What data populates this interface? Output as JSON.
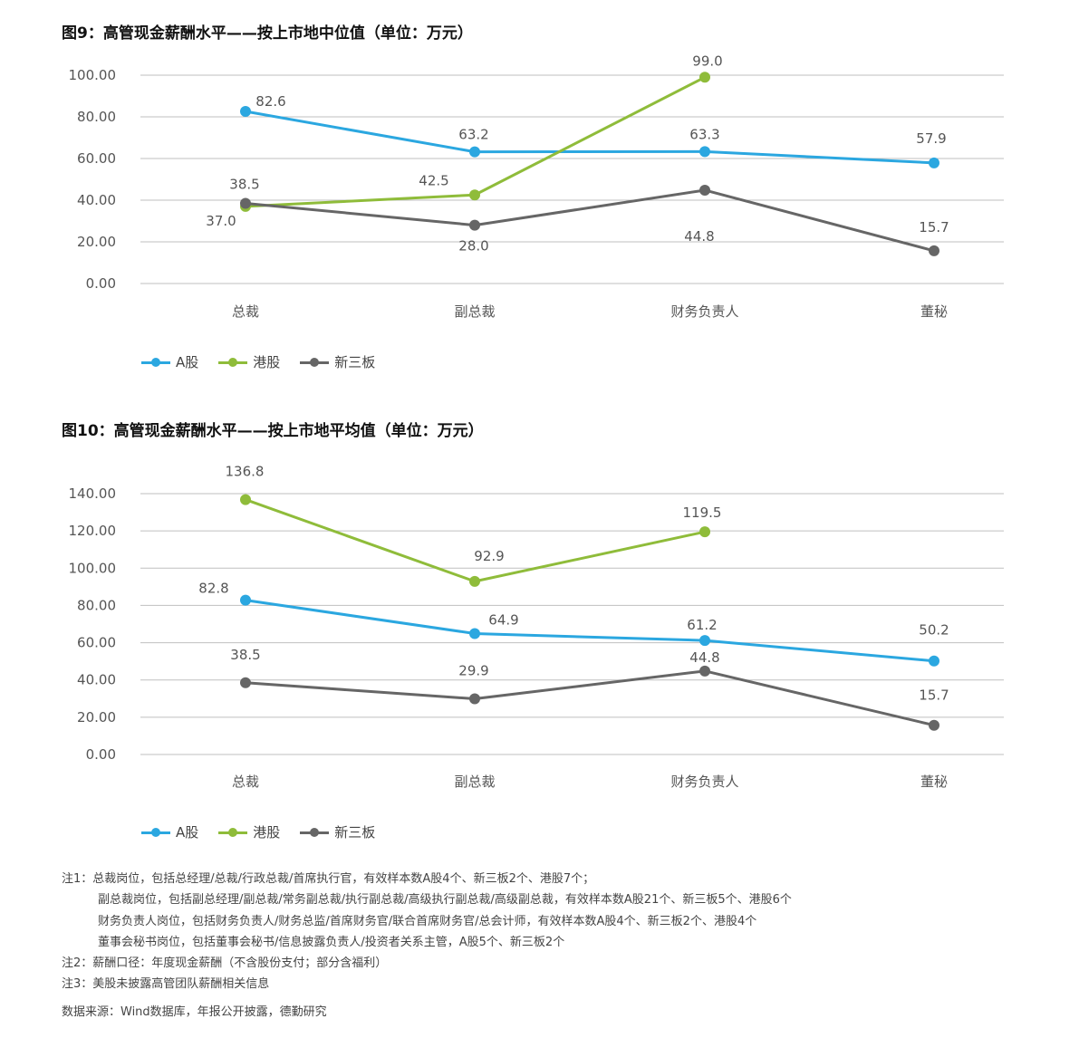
{
  "colors": {
    "a_share": "#2ba7e0",
    "hk": "#8fbc3a",
    "neeq": "#666666",
    "grid": "#bfbfbf"
  },
  "chart_data": [
    {
      "type": "line",
      "title": "图9：高管现金薪酬水平——按上市地中位值（单位：万元）",
      "categories": [
        "总裁",
        "副总裁",
        "财务负责人",
        "董秘"
      ],
      "ylim": [
        0,
        100
      ],
      "yticks": [
        "0.00",
        "20.00",
        "40.00",
        "60.00",
        "80.00",
        "100.00"
      ],
      "grid": true,
      "legend_position": "bottom-left",
      "series": [
        {
          "name": "A股",
          "color": "#2ba7e0",
          "values": [
            82.6,
            63.2,
            63.3,
            57.9
          ]
        },
        {
          "name": "港股",
          "color": "#8fbc3a",
          "values": [
            37.0,
            42.5,
            99.0,
            null
          ]
        },
        {
          "name": "新三板",
          "color": "#666666",
          "values": [
            38.5,
            28.0,
            44.8,
            15.7
          ]
        }
      ]
    },
    {
      "type": "line",
      "title": "图10：高管现金薪酬水平——按上市地平均值（单位：万元）",
      "categories": [
        "总裁",
        "副总裁",
        "财务负责人",
        "董秘"
      ],
      "ylim": [
        0,
        140
      ],
      "yticks": [
        "0.00",
        "20.00",
        "40.00",
        "60.00",
        "80.00",
        "100.00",
        "120.00",
        "140.00"
      ],
      "grid": true,
      "legend_position": "bottom-left",
      "series": [
        {
          "name": "A股",
          "color": "#2ba7e0",
          "values": [
            82.8,
            64.9,
            61.2,
            50.2
          ]
        },
        {
          "name": "港股",
          "color": "#8fbc3a",
          "values": [
            136.8,
            92.9,
            119.5,
            null
          ]
        },
        {
          "name": "新三板",
          "color": "#666666",
          "values": [
            38.5,
            29.9,
            44.8,
            15.7
          ]
        }
      ]
    }
  ],
  "notes": [
    "注1：总裁岗位，包括总经理/总裁/行政总裁/首席执行官，有效样本数A股4个、新三板2个、港股7个；",
    "副总裁岗位，包括副总经理/副总裁/常务副总裁/执行副总裁/高级执行副总裁/高级副总裁，有效样本数A股21个、新三板5个、港股6个",
    "财务负责人岗位，包括财务负责人/财务总监/首席财务官/联合首席财务官/总会计师，有效样本数A股4个、新三板2个、港股4个",
    "董事会秘书岗位，包括董事会秘书/信息披露负责人/投资者关系主管，A股5个、新三板2个",
    "注2：薪酬口径：年度现金薪酬（不含股份支付；部分含福利）",
    "注3：美股未披露高管团队薪酬相关信息"
  ],
  "source": "数据来源：Wind数据库，年报公开披露，德勤研究"
}
